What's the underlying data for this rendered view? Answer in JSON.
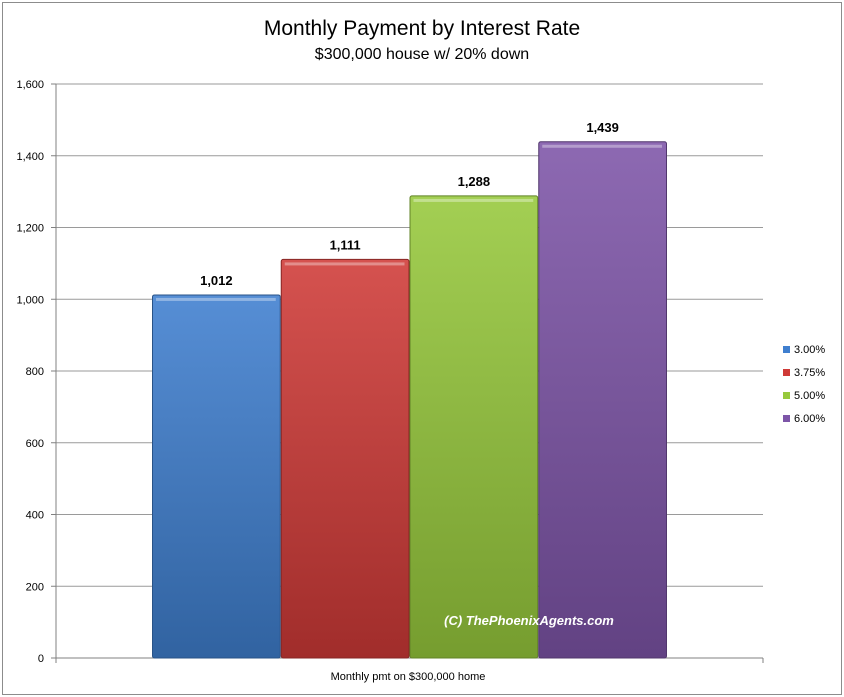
{
  "chart_data": {
    "type": "bar",
    "title": "Monthly Payment by Interest Rate",
    "subtitle": "$300,000 house w/ 20% down",
    "categories": [
      "Monthly pmt on $300,000 home"
    ],
    "series": [
      {
        "name": "3.00%",
        "values": [
          1012
        ],
        "label": "1,012",
        "color": "#3f7fcf"
      },
      {
        "name": "3.75%",
        "values": [
          1111
        ],
        "label": "1,111",
        "color": "#cf3a37"
      },
      {
        "name": "5.00%",
        "values": [
          1288
        ],
        "label": "1,288",
        "color": "#97c93c"
      },
      {
        "name": "6.00%",
        "values": [
          1439
        ],
        "label": "1,439",
        "color": "#7d55a8"
      }
    ],
    "xlabel": "",
    "ylabel": "",
    "ylim": [
      0,
      1600
    ],
    "yticks": [
      0,
      200,
      400,
      600,
      800,
      1000,
      1200,
      1400,
      1600
    ],
    "ytick_labels": [
      "0",
      "200",
      "400",
      "600",
      "800",
      "1,000",
      "1,200",
      "1,400",
      "1,600"
    ],
    "grid": true,
    "legend_position": "right",
    "annotation": "(C) ThePhoenixAgents.com"
  }
}
